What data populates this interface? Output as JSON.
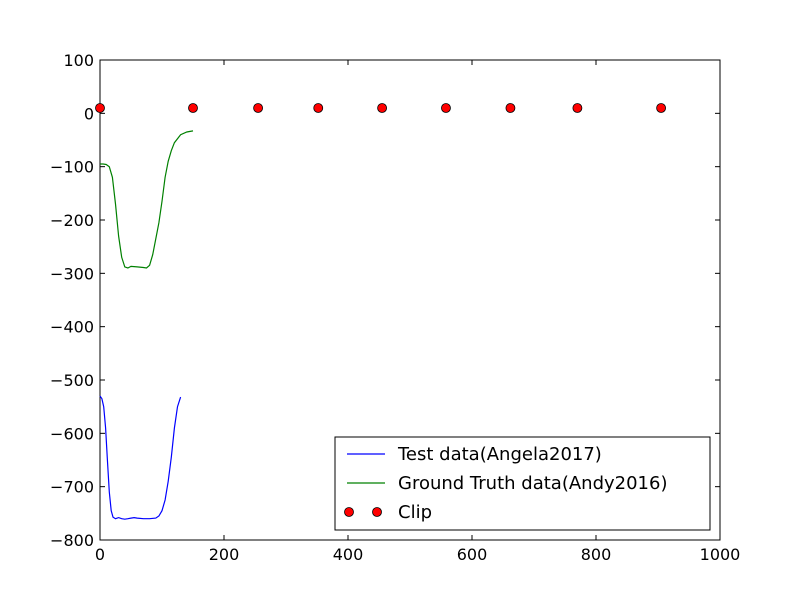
{
  "chart_data": {
    "type": "line",
    "xlim": [
      0,
      1000
    ],
    "ylim": [
      -800,
      100
    ],
    "x_ticks": [
      0,
      200,
      400,
      600,
      800,
      1000
    ],
    "y_ticks": [
      100,
      0,
      -100,
      -200,
      -300,
      -400,
      -500,
      -600,
      -700,
      -800
    ],
    "x_tick_labels": [
      "0",
      "200",
      "400",
      "600",
      "800",
      "1000"
    ],
    "y_tick_labels": [
      "100",
      "0",
      "−100",
      "−200",
      "−300",
      "−400",
      "−500",
      "−600",
      "−700",
      "−800"
    ],
    "grid": false,
    "legend_position": "lower-right",
    "series": [
      {
        "name": "Test data(Angela2017)",
        "color": "#0000ff",
        "style": "line",
        "x": [
          0,
          3,
          6,
          9,
          12,
          15,
          18,
          21,
          25,
          30,
          35,
          40,
          45,
          50,
          55,
          60,
          70,
          80,
          90,
          95,
          100,
          105,
          110,
          115,
          120,
          125,
          130
        ],
        "y": [
          -530,
          -535,
          -550,
          -590,
          -650,
          -710,
          -745,
          -757,
          -760,
          -758,
          -760,
          -761,
          -760,
          -759,
          -758,
          -759,
          -760,
          -760,
          -759,
          -755,
          -745,
          -725,
          -690,
          -645,
          -590,
          -550,
          -532
        ]
      },
      {
        "name": "Ground Truth data(Andy2016)",
        "color": "#008000",
        "style": "line",
        "x": [
          0,
          5,
          10,
          15,
          20,
          25,
          30,
          35,
          40,
          45,
          50,
          60,
          70,
          75,
          80,
          85,
          90,
          95,
          100,
          105,
          110,
          115,
          120,
          130,
          140,
          150
        ],
        "y": [
          -95,
          -95,
          -96,
          -100,
          -120,
          -170,
          -230,
          -270,
          -288,
          -290,
          -287,
          -288,
          -289,
          -290,
          -285,
          -265,
          -235,
          -205,
          -165,
          -120,
          -90,
          -70,
          -55,
          -40,
          -35,
          -33
        ]
      },
      {
        "name": "Clip",
        "color": "#ff0000",
        "style": "markers",
        "x": [
          0,
          150,
          255,
          352,
          455,
          558,
          662,
          770,
          905
        ],
        "y": [
          10,
          10,
          10,
          10,
          10,
          10,
          10,
          10,
          10
        ]
      }
    ]
  }
}
